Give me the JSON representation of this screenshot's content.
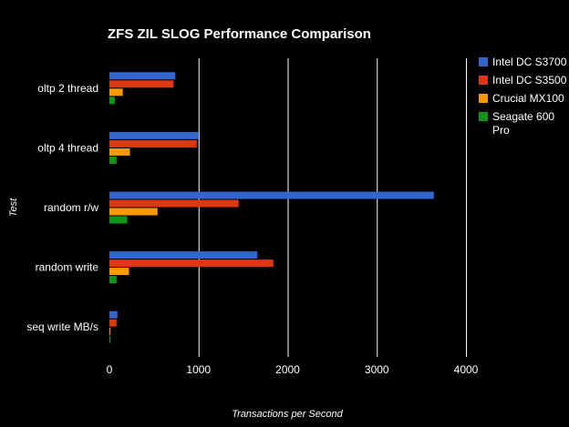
{
  "chart_data": {
    "type": "bar",
    "orientation": "horizontal",
    "title": "ZFS ZIL SLOG Performance Comparison",
    "xlabel": "Transactions per Second",
    "ylabel": "Test",
    "xlim": [
      0,
      4000
    ],
    "xticks": [
      0,
      1000,
      2000,
      3000,
      4000
    ],
    "grid": true,
    "legend_position": "right",
    "categories": [
      "oltp 2 thread",
      "oltp 4 thread",
      "random r/w",
      "random write",
      "seq write MB/s"
    ],
    "series": [
      {
        "name": "Intel DC S3700",
        "color": "#3366cc",
        "values": [
          740,
          1000,
          3640,
          1660,
          90
        ]
      },
      {
        "name": "Intel DC S3500",
        "color": "#dc3912",
        "values": [
          720,
          980,
          1450,
          1840,
          80
        ]
      },
      {
        "name": "Crucial MX100",
        "color": "#ff9900",
        "values": [
          150,
          230,
          540,
          220,
          5
        ]
      },
      {
        "name": "Seagate 600 Pro",
        "color": "#109618",
        "values": [
          60,
          80,
          200,
          80,
          3
        ]
      }
    ]
  }
}
